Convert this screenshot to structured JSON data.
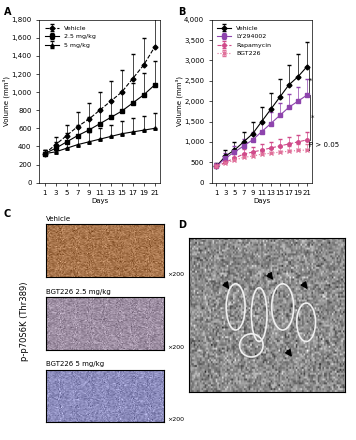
{
  "chart_data": [
    {
      "type": "line",
      "x_label": "Days",
      "y_label": "Volume (mm³)",
      "x": [
        1,
        3,
        5,
        7,
        9,
        11,
        13,
        15,
        17,
        19,
        21
      ],
      "xlim": [
        0,
        22
      ],
      "xticks": [
        1,
        3,
        5,
        7,
        9,
        11,
        13,
        15,
        17,
        19,
        21
      ],
      "ylim": [
        0,
        1800
      ],
      "yticks": [
        0,
        200,
        400,
        600,
        800,
        {
          "value": 1000,
          "label": "1,000"
        },
        {
          "value": 1200,
          "label": "1,200"
        },
        {
          "value": 1400,
          "label": "1,400"
        },
        {
          "value": 1600,
          "label": "1,600"
        },
        {
          "value": 1800,
          "label": "1,800"
        }
      ],
      "legend": "upper left",
      "series": [
        {
          "name": "Vehicle",
          "color": "#000000",
          "marker": "diamond",
          "line_style": "dashed",
          "values": [
            320,
            420,
            520,
            620,
            700,
            800,
            900,
            1000,
            1150,
            1300,
            1500
          ],
          "errors": [
            40,
            80,
            120,
            160,
            180,
            200,
            220,
            250,
            270,
            300,
            330
          ]
        },
        {
          "name": "2.5 mg/kg",
          "color": "#000000",
          "marker": "square",
          "line_style": "solid",
          "values": [
            320,
            380,
            450,
            520,
            580,
            650,
            720,
            790,
            880,
            970,
            1080
          ],
          "errors": [
            40,
            70,
            100,
            120,
            140,
            160,
            180,
            200,
            220,
            240,
            260
          ]
        },
        {
          "name": "5 mg/kg",
          "color": "#000000",
          "marker": "triangle",
          "line_style": "solid",
          "values": [
            320,
            340,
            380,
            420,
            450,
            480,
            510,
            540,
            560,
            580,
            600
          ],
          "errors": [
            40,
            60,
            80,
            100,
            110,
            120,
            130,
            140,
            150,
            160,
            170
          ]
        }
      ]
    },
    {
      "type": "line",
      "x_label": "Days",
      "y_label": "Volume (mm³)",
      "x": [
        1,
        3,
        5,
        7,
        9,
        11,
        13,
        15,
        17,
        19,
        21
      ],
      "xlim": [
        0,
        22
      ],
      "xticks": [
        1,
        3,
        5,
        7,
        9,
        11,
        13,
        15,
        17,
        19,
        21
      ],
      "ylim": [
        0,
        4000
      ],
      "yticks": [
        0,
        500,
        {
          "value": 1000,
          "label": "1,000"
        },
        {
          "value": 1500,
          "label": "1,500"
        },
        {
          "value": 2000,
          "label": "2,000"
        },
        {
          "value": 2500,
          "label": "2,500"
        },
        {
          "value": 3000,
          "label": "3,000"
        },
        {
          "value": 3500,
          "label": "3,500"
        },
        {
          "value": 4000,
          "label": "4,000"
        }
      ],
      "legend": "upper left",
      "series": [
        {
          "name": "Vehicle",
          "color": "#000000",
          "marker": "diamond",
          "line_style": "solid",
          "values": [
            400,
            650,
            800,
            1000,
            1200,
            1500,
            1800,
            2100,
            2400,
            2600,
            2850
          ],
          "errors": [
            80,
            150,
            200,
            250,
            300,
            350,
            400,
            450,
            500,
            550,
            600
          ]
        },
        {
          "name": "LY294002",
          "color": "#8e44ad",
          "marker": "square",
          "line_style": "solid",
          "values": [
            400,
            600,
            750,
            900,
            1050,
            1250,
            1450,
            1650,
            1850,
            2000,
            2150
          ],
          "errors": [
            80,
            120,
            150,
            180,
            200,
            250,
            280,
            300,
            330,
            360,
            400
          ]
        },
        {
          "name": "Rapamycin",
          "color": "#d04a8a",
          "marker": "circle",
          "line_style": "dashed",
          "values": [
            400,
            500,
            600,
            700,
            750,
            800,
            850,
            900,
            950,
            1000,
            1050
          ],
          "errors": [
            60,
            80,
            100,
            120,
            130,
            140,
            150,
            160,
            170,
            180,
            200
          ]
        },
        {
          "name": "BGT226",
          "color": "#e0709a",
          "marker": "x",
          "line_style": "dotted",
          "values": [
            400,
            480,
            550,
            620,
            650,
            700,
            720,
            750,
            770,
            790,
            800
          ],
          "errors": [
            60,
            70,
            80,
            90,
            100,
            110,
            120,
            130,
            140,
            150,
            160
          ]
        }
      ],
      "annotations": [
        {
          "text": "*",
          "between": [
            "Vehicle",
            "LY294002"
          ]
        },
        {
          "text": "*",
          "between": [
            "LY294002",
            "Rapamycin"
          ]
        },
        {
          "text": "P > 0.05",
          "between": [
            "Rapamycin",
            "BGT226"
          ]
        }
      ]
    }
  ],
  "panel_labels": [
    "A",
    "B",
    "C",
    "D"
  ],
  "panel_c": {
    "title": "p-p70S6K (Thr389)",
    "images": [
      {
        "label": "Vehicle",
        "magnification": "×200"
      },
      {
        "label": "BGT226 2.5 mg/kg",
        "magnification": "×200"
      },
      {
        "label": "BGT226 5 mg/kg",
        "magnification": "×200"
      }
    ]
  }
}
